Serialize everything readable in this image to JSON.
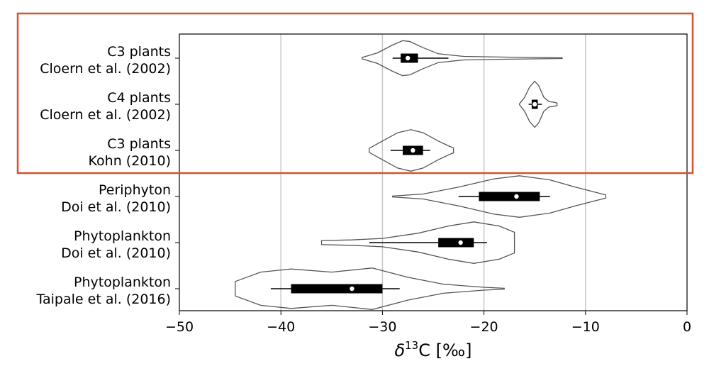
{
  "chart_data": {
    "type": "violin",
    "orientation": "horizontal",
    "xlabel": {
      "prefix": "δ",
      "superscript": "13",
      "suffix": "C [‰]"
    },
    "xlim": [
      -50,
      0
    ],
    "xticks": [
      -50,
      -40,
      -30,
      -20,
      -10,
      0
    ],
    "xtick_labels": [
      "−50",
      "−40",
      "−30",
      "−20",
      "−10",
      "0"
    ],
    "grid": "vertical",
    "highlight": {
      "rows": [
        0,
        1,
        2
      ],
      "color": "#d9512c"
    },
    "colors": {
      "violin_edge": "#555555",
      "grid": "#c8c8c8",
      "box": "#000000",
      "median": "#ffffff"
    },
    "categories": [
      {
        "label_lines": [
          "C3 plants",
          "Cloern et al. (2002)"
        ],
        "min": -32.0,
        "max": -12.3,
        "q1": -28.2,
        "median": -27.5,
        "q3": -26.5,
        "whisker_low": -29.0,
        "whisker_high": -23.5,
        "max_half_width": 0.38,
        "profile": [
          [
            -32.0,
            0.04
          ],
          [
            -30.5,
            0.3
          ],
          [
            -29.0,
            0.75
          ],
          [
            -28.0,
            1.0
          ],
          [
            -27.3,
            0.95
          ],
          [
            -26.0,
            0.6
          ],
          [
            -24.5,
            0.25
          ],
          [
            -22.0,
            0.1
          ],
          [
            -18.0,
            0.06
          ],
          [
            -12.3,
            0.02
          ]
        ]
      },
      {
        "label_lines": [
          "C4 plants",
          "Cloern et al. (2002)"
        ],
        "min": -16.5,
        "max": -12.8,
        "q1": -15.3,
        "median": -15.0,
        "q3": -14.7,
        "whisker_low": -15.6,
        "whisker_high": -14.3,
        "max_half_width": 0.5,
        "profile": [
          [
            -16.5,
            0.02
          ],
          [
            -16.0,
            0.3
          ],
          [
            -15.5,
            0.75
          ],
          [
            -15.0,
            1.0
          ],
          [
            -14.6,
            0.8
          ],
          [
            -14.1,
            0.3
          ],
          [
            -13.6,
            0.12
          ],
          [
            -13.0,
            0.08
          ],
          [
            -12.8,
            0.05
          ]
        ]
      },
      {
        "label_lines": [
          "C3 plants",
          "Kohn (2010)"
        ],
        "min": -31.3,
        "max": -23.0,
        "q1": -28.0,
        "median": -27.0,
        "q3": -26.0,
        "whisker_low": -29.2,
        "whisker_high": -25.3,
        "max_half_width": 0.45,
        "profile": [
          [
            -31.3,
            0.1
          ],
          [
            -30.0,
            0.45
          ],
          [
            -28.5,
            0.85
          ],
          [
            -27.2,
            1.0
          ],
          [
            -26.0,
            0.85
          ],
          [
            -24.5,
            0.45
          ],
          [
            -23.5,
            0.22
          ],
          [
            -23.0,
            0.12
          ]
        ]
      },
      {
        "label_lines": [
          "Periphyton",
          "Doi et al. (2010)"
        ],
        "min": -29.0,
        "max": -8.0,
        "q1": -20.5,
        "median": -16.8,
        "q3": -14.5,
        "whisker_low": -22.5,
        "whisker_high": -13.5,
        "max_half_width": 0.45,
        "profile": [
          [
            -29.0,
            0.02
          ],
          [
            -26.0,
            0.12
          ],
          [
            -22.5,
            0.45
          ],
          [
            -19.0,
            0.85
          ],
          [
            -16.5,
            1.0
          ],
          [
            -13.5,
            0.8
          ],
          [
            -11.0,
            0.45
          ],
          [
            -9.0,
            0.2
          ],
          [
            -8.0,
            0.08
          ]
        ]
      },
      {
        "label_lines": [
          "Phytoplankton",
          "Doi et al. (2010)"
        ],
        "min": -36.0,
        "max": -17.0,
        "q1": -24.5,
        "median": -22.3,
        "q3": -21.0,
        "whisker_low": -31.3,
        "whisker_high": -19.7,
        "max_half_width": 0.45,
        "profile": [
          [
            -36.0,
            0.1
          ],
          [
            -33.0,
            0.13
          ],
          [
            -30.0,
            0.2
          ],
          [
            -26.5,
            0.45
          ],
          [
            -23.5,
            0.8
          ],
          [
            -21.0,
            1.0
          ],
          [
            -18.5,
            0.8
          ],
          [
            -17.0,
            0.5
          ]
        ]
      },
      {
        "label_lines": [
          "Phytoplankton",
          "Taipale et al. (2016)"
        ],
        "min": -44.5,
        "max": -18.0,
        "q1": -39.0,
        "median": -33.0,
        "q3": -30.0,
        "whisker_low": -41.0,
        "whisker_high": -28.3,
        "max_half_width": 0.45,
        "profile": [
          [
            -44.5,
            0.35
          ],
          [
            -42.0,
            0.8
          ],
          [
            -39.0,
            0.95
          ],
          [
            -35.0,
            0.8
          ],
          [
            -31.0,
            1.0
          ],
          [
            -27.5,
            0.55
          ],
          [
            -24.0,
            0.22
          ],
          [
            -20.0,
            0.07
          ],
          [
            -18.0,
            0.02
          ]
        ]
      }
    ]
  }
}
